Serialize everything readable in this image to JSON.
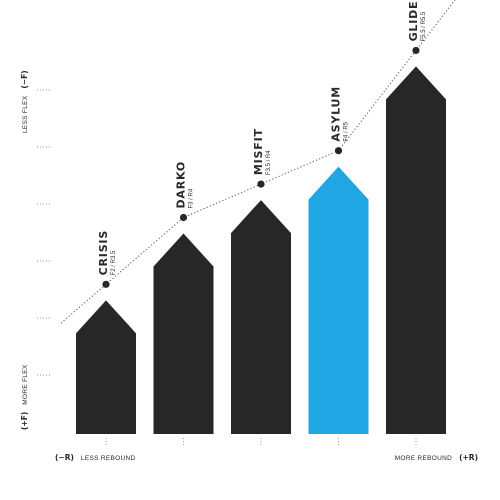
{
  "chart_data": {
    "type": "bar",
    "title": "",
    "categories": [
      "CRISIS",
      "DARKO",
      "MISFIT",
      "ASYLUM",
      "GLIDE"
    ],
    "specs": [
      "F2 / R3.5",
      "F3 / R4",
      "F3.5 / R4",
      "F4 / R5",
      "F5.5 / R5.5"
    ],
    "flex": [
      2,
      3,
      3.5,
      4,
      5.5
    ],
    "rebound": [
      3.5,
      4,
      4,
      5,
      5.5
    ],
    "highlight_index": 3,
    "colors": {
      "bar": "#272727",
      "highlight": "#20a6e2",
      "trend": "#555555",
      "grid": "#9a9a9a",
      "text": "#2a2a2a"
    },
    "y_axis": {
      "top_label": "LESS FLEX",
      "top_symbol": "(−F)",
      "bottom_label": "MORE FLEX",
      "bottom_symbol": "(+F)",
      "ylim": [
        0,
        6
      ]
    },
    "x_axis": {
      "left_symbol": "(−R)",
      "left_label": "LESS REBOUND",
      "right_label": "MORE REBOUND",
      "right_symbol": "(+R)"
    },
    "trend_line": "dotted",
    "grid": "dotted"
  }
}
